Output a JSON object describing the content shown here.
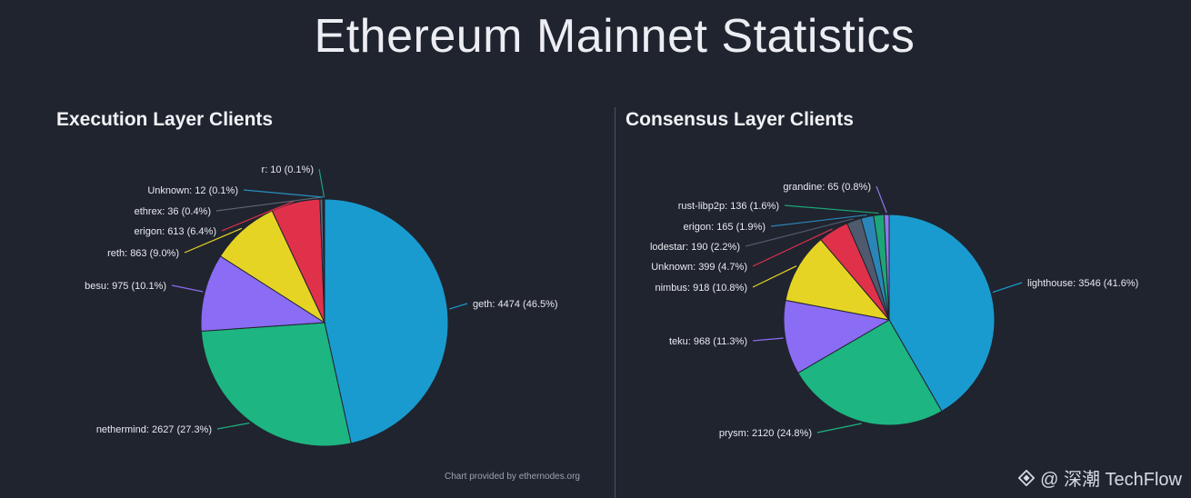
{
  "page": {
    "title": "Ethereum Mainnet Statistics",
    "credit": "Chart provided by ethernodes.org",
    "watermark": "@ 深潮 TechFlow"
  },
  "chart_data": [
    {
      "type": "pie",
      "title": "Execution Layer Clients",
      "slices": [
        {
          "name": "geth",
          "value": 4474,
          "percent": 46.5,
          "color": "#1a9bd0"
        },
        {
          "name": "nethermind",
          "value": 2627,
          "percent": 27.3,
          "color": "#1db581"
        },
        {
          "name": "besu",
          "value": 975,
          "percent": 10.1,
          "color": "#8b6cf4"
        },
        {
          "name": "reth",
          "value": 863,
          "percent": 9.0,
          "color": "#e6d425"
        },
        {
          "name": "erigon",
          "value": 613,
          "percent": 6.4,
          "color": "#e0314b"
        },
        {
          "name": "ethrex",
          "value": 36,
          "percent": 0.4,
          "color": "#5f6675"
        },
        {
          "name": "Unknown",
          "value": 12,
          "percent": 0.1,
          "color": "#2a8fc0"
        },
        {
          "name": "r",
          "value": 10,
          "percent": 0.1,
          "color": "#1e9d8a"
        }
      ],
      "labels": [
        "geth: 4474 (46.5%)",
        "nethermind: 2627 (27.3%)",
        "besu: 975 (10.1%)",
        "reth: 863 (9.0%)",
        "erigon: 613 (6.4%)",
        "ethrex: 36 (0.4%)",
        "Unknown: 12 (0.1%)",
        "r: 10 (0.1%)"
      ]
    },
    {
      "type": "pie",
      "title": "Consensus Layer Clients",
      "slices": [
        {
          "name": "lighthouse",
          "value": 3546,
          "percent": 41.6,
          "color": "#1a9bd0"
        },
        {
          "name": "prysm",
          "value": 2120,
          "percent": 24.8,
          "color": "#1db581"
        },
        {
          "name": "teku",
          "value": 968,
          "percent": 11.3,
          "color": "#8b6cf4"
        },
        {
          "name": "nimbus",
          "value": 918,
          "percent": 10.8,
          "color": "#e6d425"
        },
        {
          "name": "Unknown",
          "value": 399,
          "percent": 4.7,
          "color": "#e0314b"
        },
        {
          "name": "lodestar",
          "value": 190,
          "percent": 2.2,
          "color": "#4f5a6e"
        },
        {
          "name": "erigon",
          "value": 165,
          "percent": 1.9,
          "color": "#2b86b8"
        },
        {
          "name": "rust-libp2p",
          "value": 136,
          "percent": 1.6,
          "color": "#1da678"
        },
        {
          "name": "grandine",
          "value": 65,
          "percent": 0.8,
          "color": "#8f78f0"
        }
      ],
      "labels": [
        "lighthouse: 3546 (41.6%)",
        "prysm: 2120 (24.8%)",
        "teku: 968 (11.3%)",
        "nimbus: 918 (10.8%)",
        "Unknown: 399 (4.7%)",
        "lodestar: 190 (2.2%)",
        "erigon: 165 (1.9%)",
        "rust-libp2p: 136 (1.6%)",
        "grandine: 65 (0.8%)"
      ]
    }
  ]
}
